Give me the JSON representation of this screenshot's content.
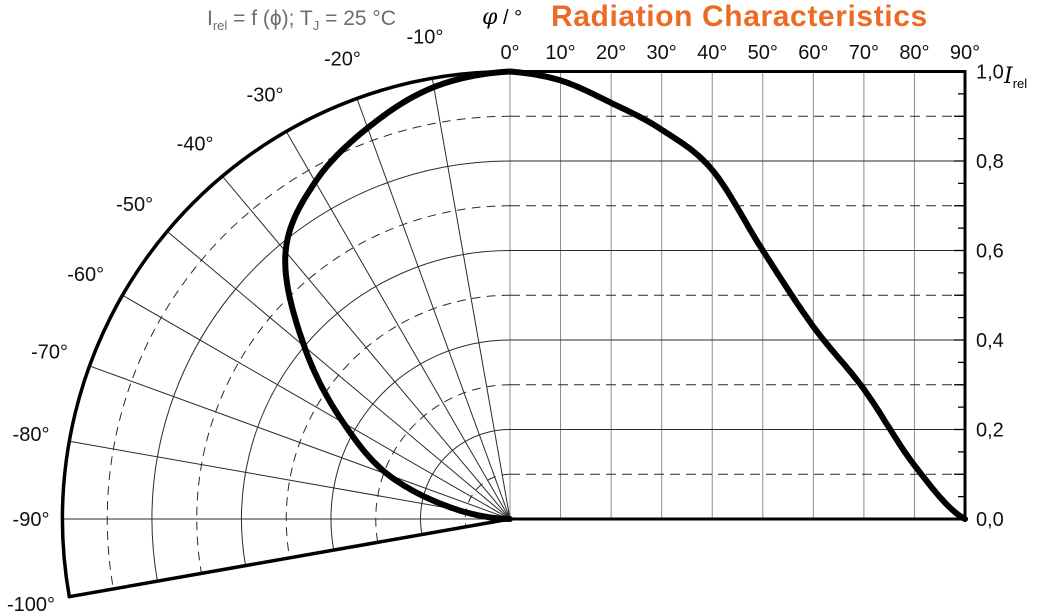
{
  "title": {
    "text": "Radiation Characteristics"
  },
  "subtitle": {
    "i_base": "I",
    "i_sub": "rel",
    "mid": " = f (ϕ); T",
    "t_sub": "J",
    "tail": " = 25 °C"
  },
  "axes": {
    "phi_axis_label": {
      "symbol": "φ",
      "suffix": " / °"
    },
    "phi_ticks": [
      "0°",
      "10°",
      "20°",
      "30°",
      "40°",
      "50°",
      "60°",
      "70°",
      "80°",
      "90°"
    ],
    "irel_ticks": [
      "1,0",
      "0,8",
      "0,6",
      "0,4",
      "0,2",
      "0,0"
    ],
    "irel_label": {
      "base": "I",
      "sub": "rel"
    },
    "polar_ticks": [
      "-10°",
      "-20°",
      "-30°",
      "-40°",
      "-50°",
      "-60°",
      "-70°",
      "-80°",
      "-90°",
      "-100°"
    ]
  },
  "colors": {
    "title_orange": "#ED6A24",
    "subtitle_gray": "#6B6C6E",
    "curve_black": "#000000",
    "grid_vertical_gray": "#8C8C8C",
    "grid_dark": "#2B2B2B"
  },
  "chart_data": {
    "type": "line",
    "title": "Radiation Characteristics",
    "subtitle": "Irel = f (ϕ); TJ = 25 °C",
    "xlabel": "φ / °",
    "ylabel": "Irel",
    "x": [
      0,
      10,
      20,
      30,
      40,
      50,
      60,
      70,
      80,
      90
    ],
    "series": [
      {
        "name": "Irel",
        "values": [
          1.0,
          0.98,
          0.93,
          0.87,
          0.78,
          0.6,
          0.43,
          0.29,
          0.12,
          0.0
        ]
      }
    ],
    "xlim": [
      0,
      90
    ],
    "ylim": [
      0,
      1
    ],
    "y_tick_labels": [
      "1,0",
      "0,8",
      "0,6",
      "0,4",
      "0,2",
      "0,0"
    ],
    "grid": {
      "solid_y_levels": [
        0.2,
        0.4,
        0.6,
        0.8
      ],
      "dashed_y_levels": [
        0.1,
        0.3,
        0.5,
        0.7,
        0.9
      ],
      "x_step_deg": 10,
      "grid_on": true
    },
    "polar_section": {
      "description": "left half is half-polar plot of same curve, r = Irel(|φ|)",
      "angle_labels_deg": [
        -10,
        -20,
        -30,
        -40,
        -50,
        -60,
        -70,
        -80,
        -90,
        -100
      ],
      "radial_line_step_deg": 10,
      "max_angle_deg": -100,
      "values_mirror_positive_angles": true
    },
    "legend_position": "none"
  }
}
